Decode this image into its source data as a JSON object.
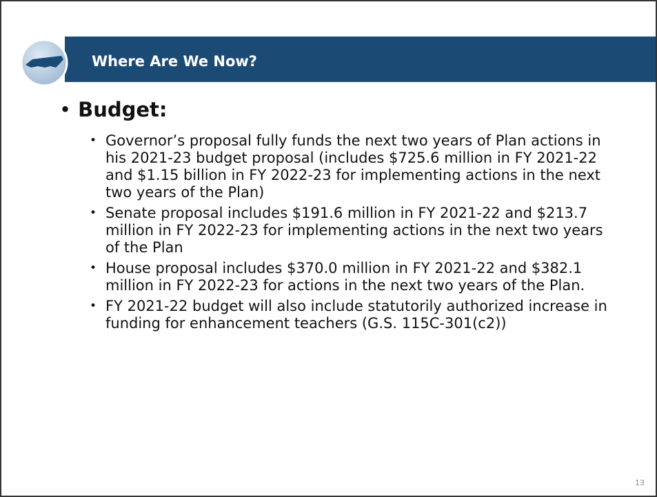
{
  "header": {
    "title": "Where Are We Now?"
  },
  "body": {
    "heading": "Budget:",
    "items": [
      "Governor’s proposal fully funds the next two years of Plan actions in his 2021-23 budget proposal (includes $725.6 million in FY 2021-22 and $1.15 billion in FY 2022-23 for implementing actions in the next two years of the Plan)",
      "Senate proposal includes $191.6 million in FY 2021-22 and $213.7 million in FY 2022-23 for implementing actions in the next two years of the Plan",
      "House proposal includes $370.0 million in FY 2021-22 and $382.1 million in FY 2022-23 for actions in the next two years of the Plan.",
      "FY 2021-22 budget will also include statutorily authorized increase in funding for enhancement teachers (G.S. 115C-301(c2))"
    ]
  },
  "footer": {
    "page_number": "13"
  }
}
